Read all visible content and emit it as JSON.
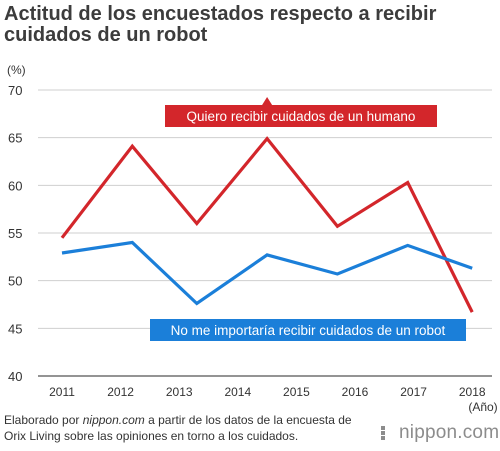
{
  "header": {
    "title": "Actitud de los encuestados respecto a recibir cuidados de un robot"
  },
  "chart_data": {
    "type": "line",
    "title": "Actitud de los encuestados respecto a recibir cuidados de un robot",
    "ylabel": "(%)",
    "xlabel": "(Año)",
    "ylim": [
      40,
      70
    ],
    "yticks": [
      40,
      45,
      50,
      55,
      60,
      65,
      70
    ],
    "x": [
      "2011",
      "2012",
      "2013",
      "2014",
      "2015",
      "2016",
      "2017",
      "2018"
    ],
    "grid": true,
    "series": [
      {
        "name": "Quiero recibir cuidados de un humano",
        "color": "#d3262b",
        "points": [
          {
            "x": 2011.0,
            "y": 54.5
          },
          {
            "x": 2012.2,
            "y": 64.1
          },
          {
            "x": 2013.3,
            "y": 56.0
          },
          {
            "x": 2014.5,
            "y": 64.9
          },
          {
            "x": 2015.7,
            "y": 55.7
          },
          {
            "x": 2016.9,
            "y": 60.3
          },
          {
            "x": 2018.0,
            "y": 46.7
          }
        ]
      },
      {
        "name": "No me importaría recibir cuidados de un robot",
        "color": "#1b7fd9",
        "points": [
          {
            "x": 2011.0,
            "y": 52.9
          },
          {
            "x": 2012.2,
            "y": 54.0
          },
          {
            "x": 2013.3,
            "y": 47.6
          },
          {
            "x": 2014.5,
            "y": 52.7
          },
          {
            "x": 2015.7,
            "y": 50.7
          },
          {
            "x": 2016.9,
            "y": 53.7
          },
          {
            "x": 2018.0,
            "y": 51.3
          }
        ]
      }
    ]
  },
  "footer": {
    "source_prefix": "Elaborado por ",
    "source_site": "nippon.com",
    "source_rest": " a partir de los datos de la encuesta de Orix Living sobre las opiniones en torno a los cuidados.",
    "brand": "nippon.com",
    "brand_icon": "nippon-logo-icon"
  }
}
